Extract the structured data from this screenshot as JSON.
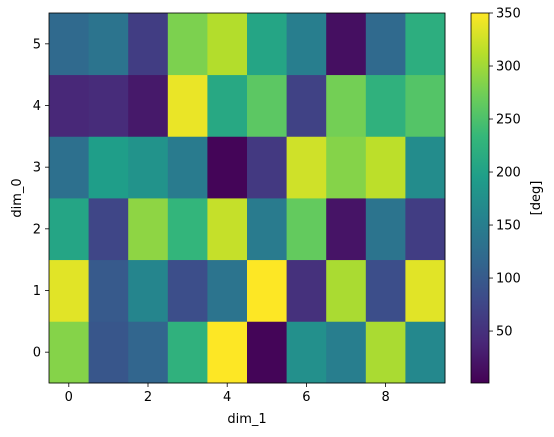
{
  "chart_data": {
    "type": "heatmap",
    "title": "",
    "xlabel": "dim_1",
    "ylabel": "dim_0",
    "colorbar_label": "[deg]",
    "colormap": "viridis",
    "x": [
      0,
      1,
      2,
      3,
      4,
      5,
      6,
      7,
      8,
      9
    ],
    "y": [
      0,
      1,
      2,
      3,
      4,
      5
    ],
    "xlim": [
      -0.5,
      9.5
    ],
    "ylim": [
      -0.5,
      5.5
    ],
    "x_ticks": [
      0,
      2,
      4,
      6,
      8
    ],
    "y_ticks": [
      0,
      1,
      2,
      3,
      4,
      5
    ],
    "clim": [
      1,
      350
    ],
    "colorbar_ticks": [
      50,
      100,
      150,
      200,
      250,
      300,
      350
    ],
    "values": [
      [
        285,
        95,
        115,
        225,
        350,
        5,
        175,
        150,
        305,
        165
      ],
      [
        335,
        100,
        160,
        85,
        135,
        352,
        50,
        305,
        85,
        335
      ],
      [
        205,
        75,
        290,
        230,
        320,
        145,
        265,
        20,
        135,
        65
      ],
      [
        130,
        195,
        180,
        145,
        5,
        60,
        325,
        285,
        315,
        170
      ],
      [
        40,
        45,
        25,
        340,
        210,
        260,
        70,
        275,
        225,
        255
      ],
      [
        120,
        135,
        65,
        280,
        310,
        205,
        150,
        15,
        120,
        220
      ]
    ]
  }
}
